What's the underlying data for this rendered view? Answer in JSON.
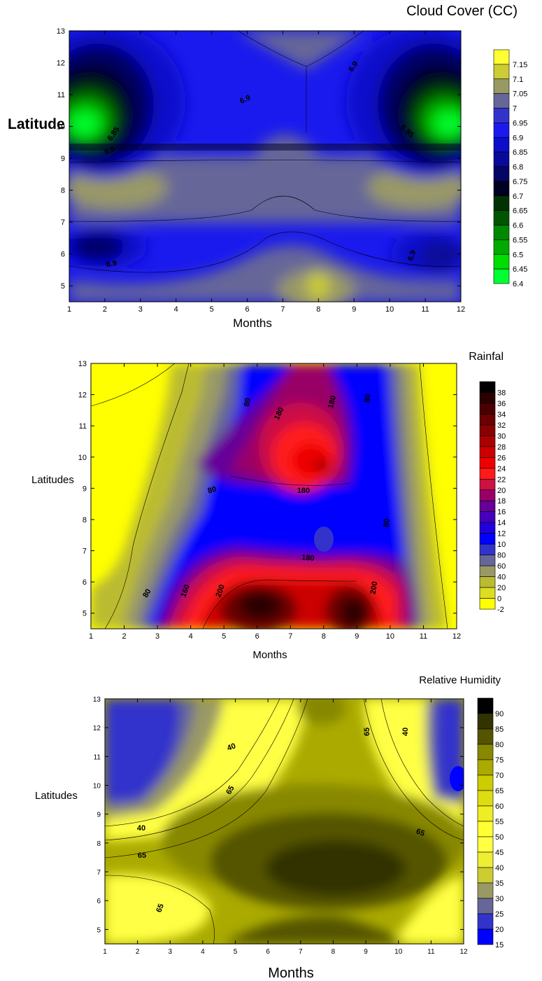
{
  "chart_data": [
    {
      "type": "heatmap",
      "title": "Cloud Cover (CC)",
      "xlabel": "Months",
      "ylabel": "Latitude",
      "xlim": [
        1,
        12
      ],
      "ylim": [
        4.5,
        13
      ],
      "x_ticks": [
        "1",
        "2",
        "3",
        "4",
        "5",
        "6",
        "7",
        "8",
        "9",
        "10",
        "11",
        "12"
      ],
      "y_ticks": [
        "5",
        "6",
        "7",
        "8",
        "9",
        "10",
        "11",
        "12",
        "13"
      ],
      "legend": {
        "placement": "right",
        "levels": [
          "7.15",
          "7.1",
          "7.05",
          "7",
          "6.95",
          "6.9",
          "6.85",
          "6.8",
          "6.75",
          "6.7",
          "6.65",
          "6.6",
          "6.55",
          "6.5",
          "6.45",
          "6.4"
        ],
        "colors": [
          "#ffff33",
          "#cccc33",
          "#999966",
          "#666699",
          "#3333cc",
          "#1a1aee",
          "#0d0dcc",
          "#0a0a9a",
          "#050566",
          "#000022",
          "#003300",
          "#005500",
          "#008800",
          "#00aa00",
          "#00dd00",
          "#00ff33"
        ]
      },
      "contour_labels": [
        "6.9",
        "6.9",
        "6.9",
        "6.9",
        "6.9",
        "6.85",
        "6.85"
      ],
      "features": [
        {
          "x": 1.7,
          "y": 10.0,
          "value": 6.4,
          "note": "low cloud cover center, west"
        },
        {
          "x": 11.4,
          "y": 10.0,
          "value": 6.4,
          "note": "low cloud cover center, east"
        },
        {
          "x": 1.8,
          "y": 8.1,
          "value": 7.05
        },
        {
          "x": 11.2,
          "y": 8.1,
          "value": 7.05
        },
        {
          "x": 8.0,
          "y": 5.0,
          "value": 7.15
        },
        {
          "x": 1.8,
          "y": 6.2,
          "value": 6.8
        },
        {
          "x": 11.5,
          "y": 6.0,
          "value": 6.85
        }
      ]
    },
    {
      "type": "heatmap",
      "title": "Rainfal",
      "xlabel": "Months",
      "ylabel": "Latitudes",
      "xlim": [
        1,
        12
      ],
      "ylim": [
        4.5,
        13
      ],
      "x_ticks": [
        "1",
        "2",
        "3",
        "4",
        "5",
        "6",
        "7",
        "8",
        "9",
        "10",
        "11",
        "12"
      ],
      "y_ticks": [
        "5",
        "6",
        "7",
        "8",
        "9",
        "10",
        "11",
        "12",
        "13"
      ],
      "legend": {
        "placement": "right",
        "levels": [
          "38",
          "36",
          "34",
          "32",
          "30",
          "28",
          "26",
          "24",
          "22",
          "20",
          "18",
          "16",
          "14",
          "12",
          "10",
          "80",
          "60",
          "40",
          "20",
          "0",
          "-2"
        ],
        "colors": [
          "#000000",
          "#2a0000",
          "#4a0000",
          "#6a0000",
          "#8a0000",
          "#aa0000",
          "#cc0000",
          "#ee0000",
          "#ff1a1a",
          "#cc1144",
          "#990066",
          "#660099",
          "#4400bb",
          "#2200dd",
          "#0000ff",
          "#3333cc",
          "#666699",
          "#999966",
          "#bbbb33",
          "#dddd22",
          "#ffff00"
        ]
      },
      "contour_labels": [
        "80",
        "180",
        "180",
        "80",
        "80",
        "180",
        "180",
        "80",
        "160",
        "200",
        "200",
        "80"
      ],
      "features": [
        {
          "x": 7.8,
          "y": 9.8,
          "value": 24
        },
        {
          "x": 6.1,
          "y": 5.2,
          "value": 36
        },
        {
          "x": 8.8,
          "y": 5.0,
          "value": 36
        },
        {
          "x": 1.5,
          "y": 11.0,
          "value": 0
        },
        {
          "x": 11.6,
          "y": 10.5,
          "value": 0
        }
      ]
    },
    {
      "type": "heatmap",
      "title": "Relative Humidity",
      "xlabel": "Months",
      "ylabel": "Latitudes",
      "xlim": [
        1,
        12
      ],
      "ylim": [
        4.5,
        13
      ],
      "x_ticks": [
        "1",
        "2",
        "3",
        "4",
        "5",
        "6",
        "7",
        "8",
        "9",
        "10",
        "11",
        "12"
      ],
      "y_ticks": [
        "5",
        "6",
        "7",
        "8",
        "9",
        "10",
        "11",
        "12",
        "13"
      ],
      "legend": {
        "placement": "right",
        "levels": [
          "90",
          "85",
          "80",
          "75",
          "70",
          "65",
          "60",
          "55",
          "50",
          "45",
          "40",
          "35",
          "30",
          "25",
          "20",
          "15"
        ],
        "colors": [
          "#000000",
          "#333300",
          "#555500",
          "#888800",
          "#aaaa00",
          "#cccc00",
          "#dddd11",
          "#eeee22",
          "#ffff33",
          "#ffff44",
          "#eeee33",
          "#cccc33",
          "#999966",
          "#666699",
          "#3333cc",
          "#0000ff"
        ]
      },
      "contour_labels": [
        "40",
        "65",
        "40",
        "65",
        "65",
        "65",
        "40",
        "65"
      ],
      "features": [
        {
          "x": 7.8,
          "y": 7.0,
          "value": 85
        },
        {
          "x": 2.0,
          "y": 11.5,
          "value": 20
        },
        {
          "x": 11.8,
          "y": 10.2,
          "value": 20
        },
        {
          "x": 8.0,
          "y": 12.7,
          "value": 75
        },
        {
          "x": 1.7,
          "y": 5.8,
          "value": 50
        }
      ]
    }
  ]
}
